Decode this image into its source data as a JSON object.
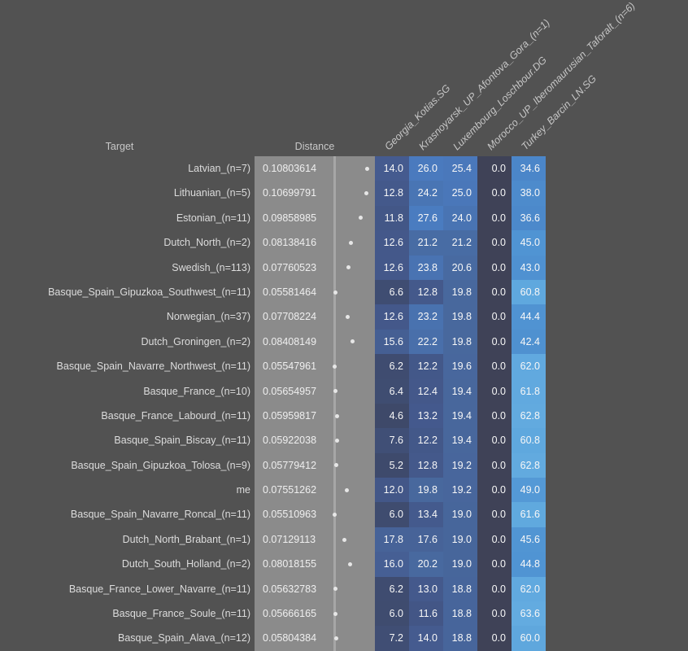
{
  "chart_data": {
    "type": "heatmap",
    "title": "",
    "row_axis_label": "Target",
    "distance_label": "Distance",
    "columns": [
      "Georgia_Kotias.SG",
      "Krasnoyarsk_UP_Afontova_Gora_(n=1)",
      "Luxembourg_Loschbour.DG",
      "Morocco_UP_Iberomaurusian_Taforalt_(n=6)",
      "Turkey_Barcin_LN.SG"
    ],
    "rows": [
      {
        "target": "Latvian_(n=7)",
        "distance": "0.10803614",
        "values": [
          14.0,
          26.0,
          25.4,
          0.0,
          34.6
        ]
      },
      {
        "target": "Lithuanian_(n=5)",
        "distance": "0.10699791",
        "values": [
          12.8,
          24.2,
          25.0,
          0.0,
          38.0
        ]
      },
      {
        "target": "Estonian_(n=11)",
        "distance": "0.09858985",
        "values": [
          11.8,
          27.6,
          24.0,
          0.0,
          36.6
        ]
      },
      {
        "target": "Dutch_North_(n=2)",
        "distance": "0.08138416",
        "values": [
          12.6,
          21.2,
          21.2,
          0.0,
          45.0
        ]
      },
      {
        "target": "Swedish_(n=113)",
        "distance": "0.07760523",
        "values": [
          12.6,
          23.8,
          20.6,
          0.0,
          43.0
        ]
      },
      {
        "target": "Basque_Spain_Gipuzkoa_Southwest_(n=11)",
        "distance": "0.05581464",
        "values": [
          6.6,
          12.8,
          19.8,
          0.0,
          60.8
        ]
      },
      {
        "target": "Norwegian_(n=37)",
        "distance": "0.07708224",
        "values": [
          12.6,
          23.2,
          19.8,
          0.0,
          44.4
        ]
      },
      {
        "target": "Dutch_Groningen_(n=2)",
        "distance": "0.08408149",
        "values": [
          15.6,
          22.2,
          19.8,
          0.0,
          42.4
        ]
      },
      {
        "target": "Basque_Spain_Navarre_Northwest_(n=11)",
        "distance": "0.05547961",
        "values": [
          6.2,
          12.2,
          19.6,
          0.0,
          62.0
        ]
      },
      {
        "target": "Basque_France_(n=10)",
        "distance": "0.05654957",
        "values": [
          6.4,
          12.4,
          19.4,
          0.0,
          61.8
        ]
      },
      {
        "target": "Basque_France_Labourd_(n=11)",
        "distance": "0.05959817",
        "values": [
          4.6,
          13.2,
          19.4,
          0.0,
          62.8
        ]
      },
      {
        "target": "Basque_Spain_Biscay_(n=11)",
        "distance": "0.05922038",
        "values": [
          7.6,
          12.2,
          19.4,
          0.0,
          60.8
        ]
      },
      {
        "target": "Basque_Spain_Gipuzkoa_Tolosa_(n=9)",
        "distance": "0.05779412",
        "values": [
          5.2,
          12.8,
          19.2,
          0.0,
          62.8
        ]
      },
      {
        "target": "me",
        "distance": "0.07551262",
        "values": [
          12.0,
          19.8,
          19.2,
          0.0,
          49.0
        ]
      },
      {
        "target": "Basque_Spain_Navarre_Roncal_(n=11)",
        "distance": "0.05510963",
        "values": [
          6.0,
          13.4,
          19.0,
          0.0,
          61.6
        ]
      },
      {
        "target": "Dutch_North_Brabant_(n=1)",
        "distance": "0.07129113",
        "values": [
          17.8,
          17.6,
          19.0,
          0.0,
          45.6
        ]
      },
      {
        "target": "Dutch_South_Holland_(n=2)",
        "distance": "0.08018155",
        "values": [
          16.0,
          20.2,
          19.0,
          0.0,
          44.8
        ]
      },
      {
        "target": "Basque_France_Lower_Navarre_(n=11)",
        "distance": "0.05632783",
        "values": [
          6.2,
          13.0,
          18.8,
          0.0,
          62.0
        ]
      },
      {
        "target": "Basque_France_Soule_(n=11)",
        "distance": "0.05666165",
        "values": [
          6.0,
          11.6,
          18.8,
          0.0,
          63.6
        ]
      },
      {
        "target": "Basque_Spain_Alava_(n=12)",
        "distance": "0.05804384",
        "values": [
          7.2,
          14.0,
          18.8,
          0.0,
          60.0
        ]
      }
    ],
    "legend_position": "none",
    "grid": false
  },
  "colors": {
    "background": "#525252",
    "gray_cell": "#8B8B8B",
    "divider": "#A6A6A6",
    "dot": "#E6E6E6",
    "header_text": "#C8C8C8",
    "target_text": "#DCDCDC",
    "cell_text": "#F7F7F7",
    "cell_color_stops": [
      [
        0,
        "#3F4257"
      ],
      [
        5,
        "#3E4A6B"
      ],
      [
        13,
        "#44598C"
      ],
      [
        20,
        "#48689E"
      ],
      [
        26,
        "#4A7ABE"
      ],
      [
        35,
        "#4B87C9"
      ],
      [
        45,
        "#5094D3"
      ],
      [
        55,
        "#59A0DA"
      ],
      [
        64,
        "#63ACE0"
      ]
    ]
  }
}
